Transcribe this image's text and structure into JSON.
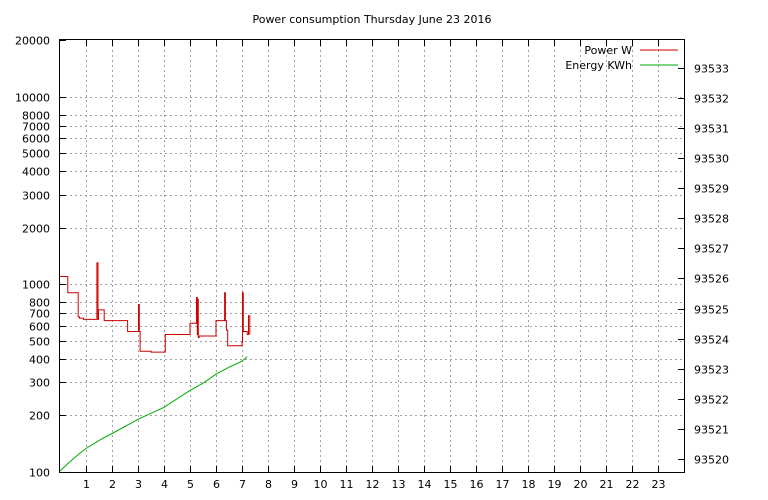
{
  "chart_data": {
    "type": "line",
    "title": "Power consumption Thursday June 23 2016",
    "xlabel": "",
    "ylabel": "",
    "y2label": "",
    "x_ticks": [
      "1",
      "2",
      "3",
      "4",
      "5",
      "6",
      "7",
      "8",
      "9",
      "10",
      "11",
      "12",
      "13",
      "14",
      "15",
      "16",
      "17",
      "18",
      "19",
      "20",
      "21",
      "22",
      "23"
    ],
    "xlim": [
      0,
      24
    ],
    "y_scale": "log",
    "ylim": [
      100,
      20000
    ],
    "y_ticks": [
      "100",
      "200",
      "300",
      "400",
      "500",
      "600",
      "700",
      "800",
      "1000",
      "2000",
      "3000",
      "4000",
      "5000",
      "6000",
      "7000",
      "8000",
      "10000",
      "20000"
    ],
    "y2lim": [
      93519.57,
      93533.92
    ],
    "y2_ticks": [
      "93520",
      "93521",
      "93522",
      "93523",
      "93524",
      "93525",
      "93526",
      "93527",
      "93528",
      "93529",
      "93530",
      "93531",
      "93532",
      "93533"
    ],
    "grid": true,
    "legend_position": "top-right",
    "series": [
      {
        "name": "Power W",
        "color": "#cc0000",
        "axis": "left",
        "step": true,
        "x": [
          0,
          0.3,
          0.7,
          0.75,
          0.9,
          1.4,
          1.42,
          1.46,
          1.48,
          1.7,
          2.0,
          2.6,
          3.0,
          3.02,
          3.05,
          3.08,
          3.1,
          3.5,
          4.0,
          4.05,
          4.5,
          5.0,
          5.2,
          5.25,
          5.28,
          5.3,
          5.32,
          5.35,
          5.5,
          6.0,
          6.3,
          6.33,
          6.36,
          6.4,
          6.45,
          6.5,
          6.9,
          7.0,
          7.02,
          7.05,
          7.1,
          7.2,
          7.25,
          7.3
        ],
        "y": [
          1100,
          900,
          670,
          660,
          650,
          650,
          1300,
          650,
          730,
          640,
          640,
          560,
          560,
          780,
          560,
          440,
          440,
          435,
          435,
          540,
          540,
          620,
          620,
          850,
          540,
          830,
          520,
          530,
          530,
          640,
          640,
          900,
          640,
          570,
          470,
          470,
          470,
          490,
          900,
          560,
          560,
          540,
          680,
          540
        ]
      },
      {
        "name": "Energy KWh",
        "color": "#00aa00",
        "axis": "right",
        "step": false,
        "x": [
          0,
          0.3,
          0.7,
          1.0,
          1.5,
          2.0,
          2.5,
          3.0,
          3.5,
          4.0,
          4.5,
          5.0,
          5.5,
          6.0,
          6.5,
          7.0,
          7.2
        ],
        "y": [
          93519.6,
          93519.85,
          93520.15,
          93520.35,
          93520.62,
          93520.85,
          93521.08,
          93521.32,
          93521.52,
          93521.72,
          93522.0,
          93522.28,
          93522.52,
          93522.82,
          93523.05,
          93523.25,
          93523.4
        ]
      }
    ]
  }
}
